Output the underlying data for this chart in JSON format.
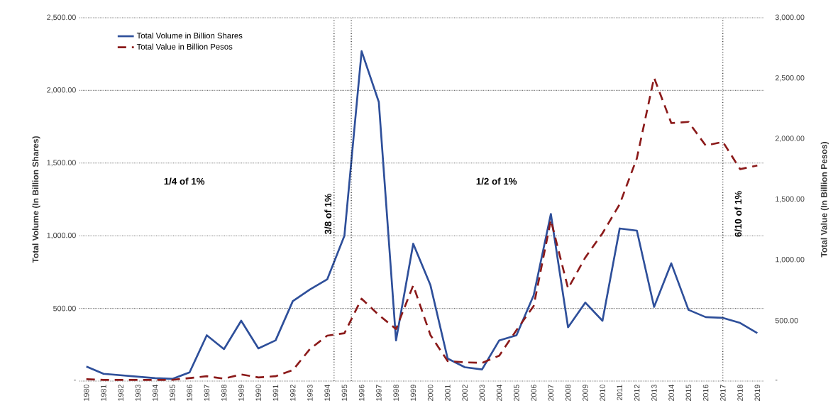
{
  "chart_data": {
    "type": "line",
    "ylabel": "Total Volume (In Billion Shares)",
    "y2label": "Total Value (In Billion Pesos)",
    "x": [
      1980,
      1981,
      1982,
      1983,
      1984,
      1985,
      1986,
      1987,
      1988,
      1989,
      1990,
      1991,
      1992,
      1993,
      1994,
      1995,
      1996,
      1997,
      1998,
      1999,
      2000,
      2001,
      2002,
      2003,
      2004,
      2005,
      2006,
      2007,
      2008,
      2009,
      2010,
      2011,
      2012,
      2013,
      2014,
      2015,
      2016,
      2017,
      2018,
      2019
    ],
    "series": [
      {
        "name": "Total Volume in Billion Shares",
        "color": "#2e4f9a",
        "line_style": "solid",
        "values": [
          100,
          50,
          40,
          30,
          20,
          15,
          60,
          315,
          220,
          415,
          225,
          280,
          550,
          630,
          700,
          1000,
          2270,
          1920,
          280,
          945,
          660,
          155,
          95,
          80,
          280,
          315,
          590,
          1150,
          370,
          540,
          415,
          1050,
          1035,
          510,
          810,
          490,
          440,
          435,
          400,
          330
        ]
      },
      {
        "name": "Total Value in Billion Pesos",
        "color": "#8b1a1a",
        "line_style": "dashed",
        "axis": "y2",
        "values": [
          15,
          10,
          10,
          10,
          10,
          10,
          25,
          40,
          20,
          55,
          30,
          40,
          90,
          265,
          375,
          395,
          680,
          545,
          430,
          790,
          380,
          165,
          155,
          150,
          210,
          420,
          620,
          1330,
          765,
          1020,
          1220,
          1460,
          1840,
          2505,
          2130,
          2140,
          1945,
          1975,
          1750,
          1780
        ]
      }
    ],
    "xlim": [
      1979.6,
      2019.4
    ],
    "xticks": [
      1980,
      1981,
      1982,
      1983,
      1984,
      1985,
      1986,
      1987,
      1988,
      1989,
      1990,
      1991,
      1992,
      1993,
      1994,
      1995,
      1996,
      1997,
      1998,
      1999,
      2000,
      2001,
      2002,
      2003,
      2004,
      2005,
      2006,
      2007,
      2008,
      2009,
      2010,
      2011,
      2012,
      2013,
      2014,
      2015,
      2016,
      2017,
      2018,
      2019
    ],
    "ylim": [
      0,
      2500
    ],
    "yticks": [
      {
        "value": 0,
        "label": "-"
      },
      {
        "value": 500,
        "label": "500.00"
      },
      {
        "value": 1000,
        "label": "1,000.00"
      },
      {
        "value": 1500,
        "label": "1,500.00"
      },
      {
        "value": 2000,
        "label": "2,000.00"
      },
      {
        "value": 2500,
        "label": "2,500.00"
      }
    ],
    "y2lim": [
      0,
      3000
    ],
    "y2ticks": [
      {
        "value": 0,
        "label": "-"
      },
      {
        "value": 500,
        "label": "500.00"
      },
      {
        "value": 1000,
        "label": "1,000.00"
      },
      {
        "value": 1500,
        "label": "1,500.00"
      },
      {
        "value": 2000,
        "label": "2,000.00"
      },
      {
        "value": 2500,
        "label": "2,500.00"
      },
      {
        "value": 3000,
        "label": "3,000.00"
      }
    ],
    "ref_lines": [
      {
        "axis": "x",
        "value": 1994.4,
        "line_style": "dotted"
      },
      {
        "axis": "x",
        "value": 1995.4,
        "line_style": "dotted"
      },
      {
        "axis": "x",
        "value": 2017,
        "line_style": "dotted"
      }
    ],
    "annotations": [
      "1/4 of 1%",
      "3/8 of 1%",
      "1/2 of 1%",
      "6/10 of 1%"
    ],
    "grid": "y",
    "legend": "top left"
  }
}
